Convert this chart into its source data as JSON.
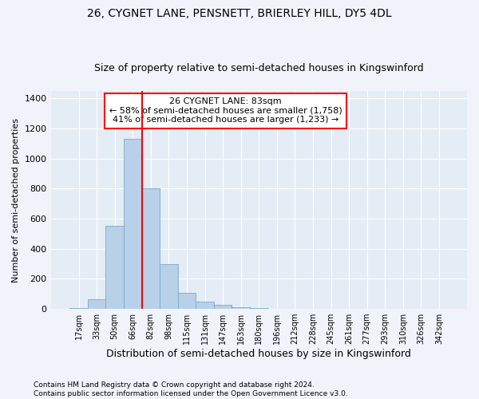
{
  "title1": "26, CYGNET LANE, PENSNETT, BRIERLEY HILL, DY5 4DL",
  "title2": "Size of property relative to semi-detached houses in Kingswinford",
  "xlabel": "Distribution of semi-detached houses by size in Kingswinford",
  "ylabel": "Number of semi-detached properties",
  "categories": [
    "17sqm",
    "33sqm",
    "50sqm",
    "66sqm",
    "82sqm",
    "98sqm",
    "115sqm",
    "131sqm",
    "147sqm",
    "163sqm",
    "180sqm",
    "196sqm",
    "212sqm",
    "228sqm",
    "245sqm",
    "261sqm",
    "277sqm",
    "293sqm",
    "310sqm",
    "326sqm",
    "342sqm"
  ],
  "values": [
    8,
    65,
    555,
    1130,
    800,
    300,
    105,
    50,
    25,
    10,
    5,
    0,
    0,
    0,
    0,
    0,
    0,
    0,
    0,
    0,
    0
  ],
  "bar_color": "#b8d0e8",
  "bar_edge_color": "#7aaac8",
  "red_line_index": 3.5,
  "annotation_line1": "26 CYGNET LANE: 83sqm",
  "annotation_line2": "← 58% of semi-detached houses are smaller (1,758)",
  "annotation_line3": "41% of semi-detached houses are larger (1,233) →",
  "ylim": [
    0,
    1450
  ],
  "yticks": [
    0,
    200,
    400,
    600,
    800,
    1000,
    1200,
    1400
  ],
  "footnote1": "Contains HM Land Registry data © Crown copyright and database right 2024.",
  "footnote2": "Contains public sector information licensed under the Open Government Licence v3.0.",
  "bg_color": "#f0f4fa",
  "plot_bg_color": "#e4ecf5",
  "grid_color": "#ffffff",
  "title1_fontsize": 10,
  "title2_fontsize": 9,
  "xlabel_fontsize": 9,
  "ylabel_fontsize": 8
}
